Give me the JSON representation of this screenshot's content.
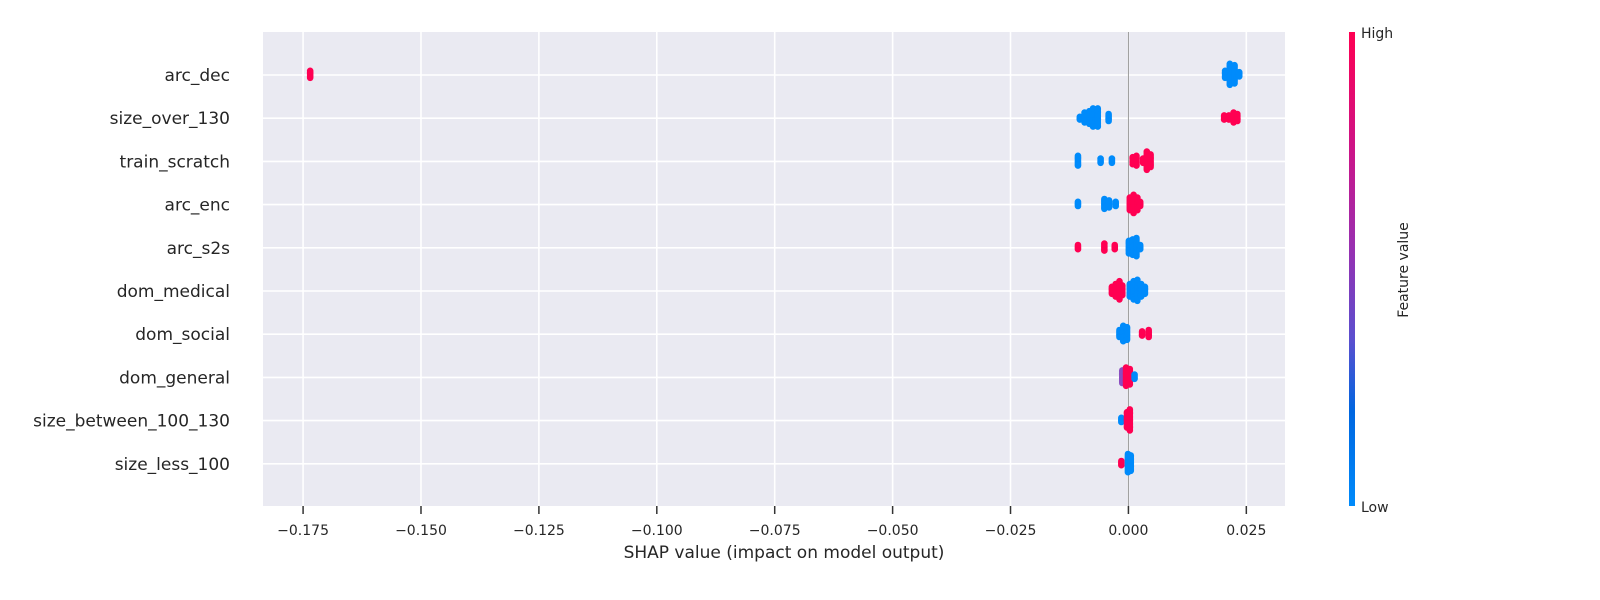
{
  "chart_data": {
    "type": "scatter",
    "subtype": "shap-beeswarm",
    "title": "",
    "xlabel": "SHAP value (impact on model output)",
    "ylabel": "",
    "xlim": [
      -0.1835,
      0.0332
    ],
    "xticks": [
      -0.175,
      -0.15,
      -0.125,
      -0.1,
      -0.075,
      -0.05,
      -0.025,
      0.0,
      0.025
    ],
    "xtick_labels": [
      "−0.175",
      "−0.150",
      "−0.125",
      "−0.100",
      "−0.075",
      "−0.050",
      "−0.025",
      "0.000",
      "0.025"
    ],
    "grid": true,
    "zero_line": true,
    "colors": {
      "low": "#008bfb",
      "high": "#ff0052",
      "mid": "#8a4cc0",
      "background": "#eaeaf2",
      "grid": "#ffffff"
    },
    "colorbar": {
      "label": "Feature value",
      "high_label": "High",
      "low_label": "Low"
    },
    "features": [
      {
        "name": "arc_dec",
        "points": [
          {
            "x": -0.1735,
            "v": "high",
            "n": 6
          },
          {
            "x": 0.0205,
            "v": "low",
            "n": 6
          },
          {
            "x": 0.0215,
            "v": "low",
            "n": 16
          },
          {
            "x": 0.0225,
            "v": "low",
            "n": 14
          },
          {
            "x": 0.0235,
            "v": "low",
            "n": 4
          }
        ]
      },
      {
        "name": "size_over_130",
        "points": [
          {
            "x": -0.0103,
            "v": "low",
            "n": 3
          },
          {
            "x": -0.0093,
            "v": "low",
            "n": 8
          },
          {
            "x": -0.0083,
            "v": "low",
            "n": 10
          },
          {
            "x": -0.0075,
            "v": "low",
            "n": 14
          },
          {
            "x": -0.0065,
            "v": "low",
            "n": 14
          },
          {
            "x": -0.0042,
            "v": "low",
            "n": 6
          },
          {
            "x": 0.0203,
            "v": "high",
            "n": 4
          },
          {
            "x": 0.0213,
            "v": "high",
            "n": 4
          },
          {
            "x": 0.0223,
            "v": "high",
            "n": 8
          },
          {
            "x": 0.0231,
            "v": "high",
            "n": 6
          }
        ]
      },
      {
        "name": "train_scratch",
        "points": [
          {
            "x": -0.0107,
            "v": "low",
            "n": 8
          },
          {
            "x": -0.0059,
            "v": "low",
            "n": 4
          },
          {
            "x": -0.0035,
            "v": "low",
            "n": 4
          },
          {
            "x": 0.0009,
            "v": "high",
            "n": 6
          },
          {
            "x": 0.0017,
            "v": "high",
            "n": 8
          },
          {
            "x": 0.0031,
            "v": "high",
            "n": 4
          },
          {
            "x": 0.0039,
            "v": "high",
            "n": 14
          },
          {
            "x": 0.0047,
            "v": "high",
            "n": 10
          }
        ]
      },
      {
        "name": "arc_enc",
        "points": [
          {
            "x": -0.0107,
            "v": "low",
            "n": 4
          },
          {
            "x": -0.0051,
            "v": "low",
            "n": 8
          },
          {
            "x": -0.0041,
            "v": "low",
            "n": 6
          },
          {
            "x": -0.0027,
            "v": "low",
            "n": 4
          },
          {
            "x": 0.0003,
            "v": "high",
            "n": 10
          },
          {
            "x": 0.0011,
            "v": "high",
            "n": 14
          },
          {
            "x": 0.0019,
            "v": "high",
            "n": 10
          },
          {
            "x": 0.0025,
            "v": "high",
            "n": 4
          }
        ]
      },
      {
        "name": "arc_s2s",
        "points": [
          {
            "x": -0.0107,
            "v": "high",
            "n": 4
          },
          {
            "x": -0.0051,
            "v": "high",
            "n": 6
          },
          {
            "x": -0.0029,
            "v": "high",
            "n": 4
          },
          {
            "x": 0.0001,
            "v": "low",
            "n": 10
          },
          {
            "x": 0.0009,
            "v": "low",
            "n": 12
          },
          {
            "x": 0.0017,
            "v": "low",
            "n": 14
          },
          {
            "x": 0.0025,
            "v": "low",
            "n": 4
          }
        ]
      },
      {
        "name": "dom_medical",
        "points": [
          {
            "x": -0.0035,
            "v": "high",
            "n": 6
          },
          {
            "x": -0.0027,
            "v": "high",
            "n": 10
          },
          {
            "x": -0.0019,
            "v": "high",
            "n": 14
          },
          {
            "x": -0.0013,
            "v": "high",
            "n": 8
          },
          {
            "x": 0.0003,
            "v": "low",
            "n": 10
          },
          {
            "x": 0.0011,
            "v": "low",
            "n": 14
          },
          {
            "x": 0.0019,
            "v": "low",
            "n": 16
          },
          {
            "x": 0.0027,
            "v": "low",
            "n": 10
          },
          {
            "x": 0.0035,
            "v": "low",
            "n": 6
          }
        ]
      },
      {
        "name": "dom_social",
        "points": [
          {
            "x": -0.0019,
            "v": "low",
            "n": 6
          },
          {
            "x": -0.0011,
            "v": "low",
            "n": 12
          },
          {
            "x": -0.0003,
            "v": "low",
            "n": 10
          },
          {
            "x": 0.0029,
            "v": "high",
            "n": 4
          },
          {
            "x": 0.0043,
            "v": "high",
            "n": 6
          }
        ]
      },
      {
        "name": "dom_general",
        "points": [
          {
            "x": -0.0013,
            "v": "mid",
            "n": 10
          },
          {
            "x": -0.0005,
            "v": "high",
            "n": 14
          },
          {
            "x": 0.0003,
            "v": "high",
            "n": 12
          },
          {
            "x": 0.0013,
            "v": "low",
            "n": 4
          }
        ]
      },
      {
        "name": "size_between_100_130",
        "points": [
          {
            "x": -0.0015,
            "v": "low",
            "n": 4
          },
          {
            "x": -0.0003,
            "v": "high",
            "n": 12
          },
          {
            "x": 0.0003,
            "v": "high",
            "n": 16
          }
        ]
      },
      {
        "name": "size_less_100",
        "points": [
          {
            "x": -0.0015,
            "v": "high",
            "n": 4
          },
          {
            "x": -0.0001,
            "v": "low",
            "n": 14
          },
          {
            "x": 0.0005,
            "v": "low",
            "n": 12
          }
        ]
      }
    ]
  }
}
